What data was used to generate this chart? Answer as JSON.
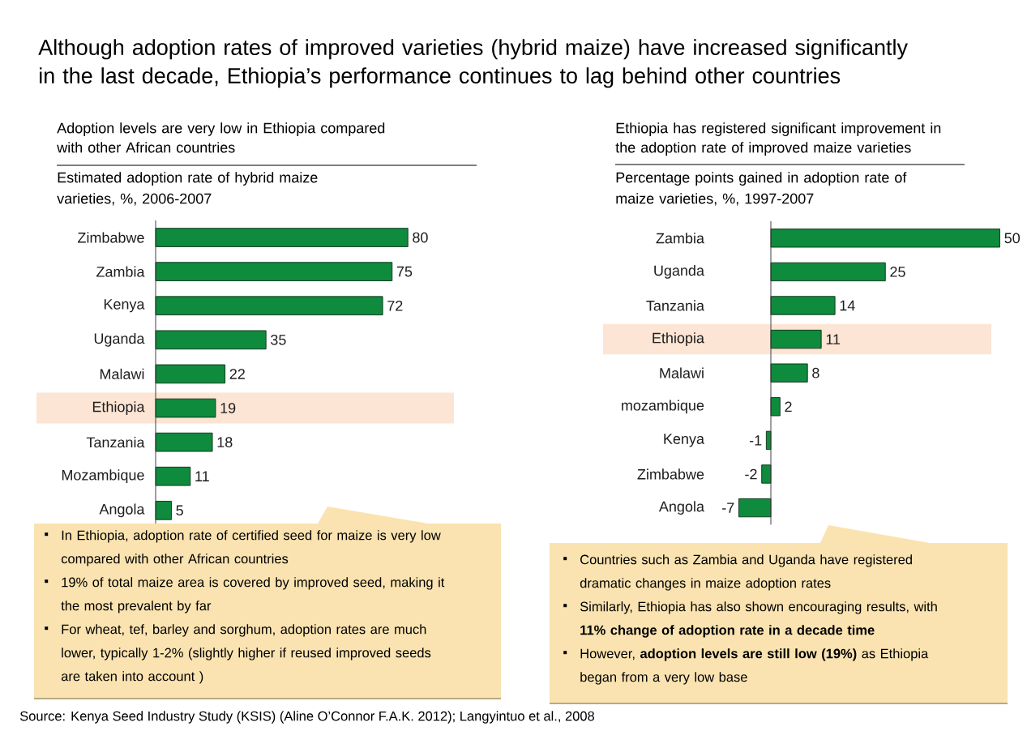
{
  "chart_data": [
    {
      "type": "other",
      "title": "Although adoption rates of improved varieties (hybrid maize) have increased significantly in the last decade, Ethiopia’s performance continues to lag behind other countries",
      "annotations": [
        "Source: Kenya Seed Industry Study (KSIS) (Aline O’Connor F.A.K. 2012); Langyintuo et al., 2008"
      ]
    },
    {
      "type": "bar",
      "orientation": "horizontal",
      "title": "Adoption levels are very low in Ethiopia compared with other African countries",
      "subtitle": "Estimated adoption rate of hybrid maize varieties, %, 2006-2007",
      "categories": [
        "Zimbabwe",
        "Zambia",
        "Kenya",
        "Uganda",
        "Malawi",
        "Ethiopia",
        "Tanzania",
        "Mozambique",
        "Angola"
      ],
      "values": [
        80,
        75,
        72,
        35,
        22,
        19,
        18,
        11,
        5
      ],
      "color": "#0f8b3d",
      "data_labels": true,
      "bands": [
        {
          "axis": "y",
          "from": "Ethiopia",
          "to": "Ethiopia",
          "color": "#fce5d4"
        }
      ],
      "annotations": [
        "In Ethiopia, adoption rate of certified seed for maize is very low compared with other African countries",
        "19% of total maize area is covered by improved seed, making it the most prevalent by far",
        "For wheat, tef, barley and sorghum, adoption rates are much lower, typically 1-2% (slightly higher if reused improved seeds are taken into account )"
      ]
    },
    {
      "type": "bar",
      "orientation": "horizontal",
      "title": "Ethiopia has registered significant improvement in the adoption rate of improved maize varieties",
      "subtitle": "Percentage points gained in adoption rate of maize varieties, %, 1997-2007",
      "categories": [
        "Zambia",
        "Uganda",
        "Tanzania",
        "Ethiopia",
        "Malawi",
        "mozambique",
        "Kenya",
        "Zimbabwe",
        "Angola"
      ],
      "values": [
        50,
        25,
        14,
        11,
        8,
        2,
        -1,
        -2,
        -7
      ],
      "color": "#0f8b3d",
      "data_labels": true,
      "bands": [
        {
          "axis": "y",
          "from": "Ethiopia",
          "to": "Ethiopia",
          "color": "#fce5d4"
        }
      ],
      "annotations": [
        "Countries such as Zambia and Uganda have registered dramatic changes in maize adoption rates",
        "Similarly, Ethiopia has also shown encouraging results, with **11% change of adoption rate in a decade time**",
        "However, **adoption levels are still low (19%)** as Ethiopia began from a very low base"
      ]
    }
  ]
}
